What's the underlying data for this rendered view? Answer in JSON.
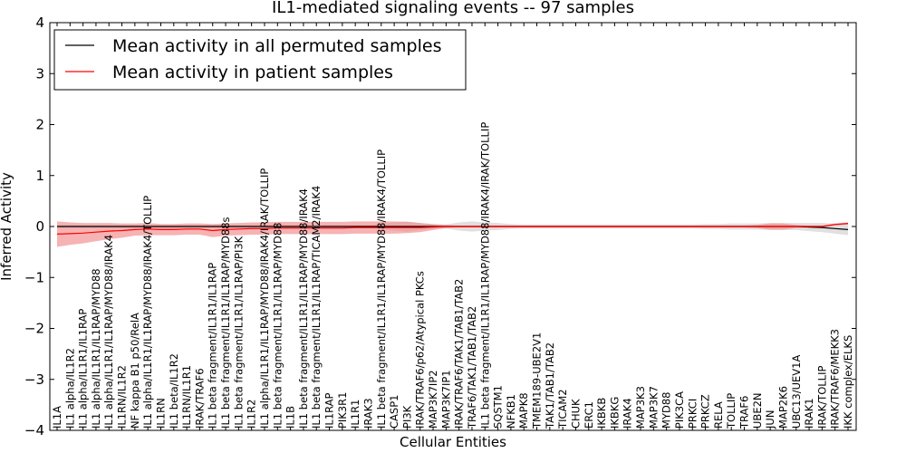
{
  "chart_data": {
    "type": "line",
    "title": "IL1-mediated signaling events -- 97 samples",
    "xlabel": "Cellular Entities",
    "ylabel": "Inferred Activity",
    "ylim": [
      -4,
      4
    ],
    "yticks": [
      4,
      3,
      2,
      1,
      0,
      -1,
      -2,
      -3,
      -4
    ],
    "ytick_labels": [
      "4",
      "3",
      "2",
      "1",
      "0",
      "−1",
      "−2",
      "−3",
      "−4"
    ],
    "legend": {
      "position": "top-left",
      "entries": [
        {
          "name": "Mean activity in all permuted samples",
          "color": "#000000"
        },
        {
          "name": "Mean activity in patient samples",
          "color": "#ff0000"
        }
      ]
    },
    "categories": [
      "IL1A",
      "IL1 alpha/IL1R2",
      "IL1 alpha/IL1R1/IL1RAP",
      "IL1 alpha/IL1R1/IL1RAP/MYD88",
      "IL1 alpha/IL1R1/IL1RAP/MYD88/IRAK4",
      "IL1RN/IL1R2",
      "NF kappa B1 p50/RelA",
      "IL1 alpha/IL1R1/IL1RAP/MYD88/IRAK4/TOLLIP",
      "IL1RN",
      "IL1 beta/IL1R2",
      "IL1RN/IL1R1",
      "IRAK/TRAF6",
      "IL1 beta fragment/IL1R1/IL1RAP",
      "IL1 beta fragment/IL1R1/IL1RAP/MYD88s",
      "IL1 beta fragment/IL1R1/IL1RAP/PI3K",
      "IL1R2",
      "IL1 alpha/IL1R1/IL1RAP/MYD88/IRAK4/IRAK/TOLLIP",
      "IL1 beta fragment/IL1R1/IL1RAP/MYD88",
      "IL1B",
      "IL1 beta fragment/IL1R1/IL1RAP/MYD88/IRAK4",
      "IL1 beta fragment/IL1R1/IL1RAP/TICAM2/IRAK4",
      "IL1RAP",
      "PIK3R1",
      "IL1R1",
      "IRAK3",
      "IL1 beta fragment/IL1R1/IL1RAP/MYD88/IRAK4/TOLLIP",
      "CASP1",
      "PI3K",
      "IRAK/TRAF6/p62/Atypical PKCs",
      "MAP3K7IP2",
      "MAP3K7IP1",
      "IRAK/TRAF6/TAK1/TAB1/TAB2",
      "TRAF6/TAK1/TAB1/TAB2",
      "IL1 beta fragment/IL1R1/IL1RAP/MYD88/IRAK4/IRAK/TOLLIP",
      "SQSTM1",
      "NFKB1",
      "MAPK8",
      "TMEM189-UBE2V1",
      "TAK1/TAB1/TAB2",
      "TICAM2",
      "CHUK",
      "ERC1",
      "IKBKB",
      "IKBKG",
      "IRAK4",
      "MAP3K3",
      "MAP3K7",
      "MYD88",
      "PIK3CA",
      "PRKCI",
      "PRKCZ",
      "RELA",
      "TOLLIP",
      "TRAF6",
      "UBE2N",
      "JUN",
      "MAP2K6",
      "UBC13/UEV1A",
      "IRAK1",
      "IRAK/TOLLIP",
      "IRAK/TRAF6/MEKK3",
      "IKK complex/ELKS"
    ],
    "series": [
      {
        "name": "Mean activity in all permuted samples",
        "color": "#000000",
        "band_color": "#bbbbbb",
        "values": [
          0,
          0,
          0,
          0,
          0,
          0,
          0,
          0,
          0,
          0,
          0,
          0,
          0,
          0,
          0,
          0,
          0,
          0,
          0,
          0,
          0,
          0,
          0,
          0,
          0,
          0,
          0,
          0,
          0,
          0,
          0,
          0,
          0,
          0,
          0,
          0,
          0,
          0,
          0,
          0,
          0,
          0,
          0,
          0,
          0,
          0,
          0,
          0,
          0,
          0,
          0,
          0,
          0,
          0,
          0,
          0,
          0,
          0,
          -0.01,
          -0.02,
          -0.04,
          -0.06
        ],
        "band": [
          0.03,
          0.03,
          0.03,
          0.03,
          0.03,
          0.03,
          0.03,
          0.03,
          0.03,
          0.03,
          0.03,
          0.03,
          0.03,
          0.03,
          0.03,
          0.03,
          0.03,
          0.03,
          0.03,
          0.03,
          0.03,
          0.03,
          0.03,
          0.03,
          0.03,
          0.05,
          0.08,
          0.1,
          0.07,
          0.04,
          0.04,
          0.08,
          0.1,
          0.08,
          0.07,
          0.05,
          0.04,
          0.04,
          0.04,
          0.04,
          0.04,
          0.04,
          0.04,
          0.04,
          0.04,
          0.04,
          0.04,
          0.04,
          0.04,
          0.04,
          0.05,
          0.05,
          0.06,
          0.06,
          0.06,
          0.07,
          0.07,
          0.07,
          0.08,
          0.09,
          0.1,
          0.11
        ]
      },
      {
        "name": "Mean activity in patient samples",
        "color": "#ff0000",
        "band_color": "#f08080",
        "values": [
          -0.15,
          -0.14,
          -0.13,
          -0.11,
          -0.09,
          -0.08,
          -0.06,
          -0.05,
          -0.06,
          -0.06,
          -0.05,
          -0.05,
          -0.08,
          -0.06,
          -0.05,
          -0.04,
          -0.04,
          -0.03,
          -0.03,
          -0.03,
          -0.03,
          -0.03,
          -0.03,
          -0.02,
          -0.02,
          -0.02,
          -0.02,
          -0.02,
          -0.02,
          -0.01,
          0,
          0,
          0,
          0,
          0,
          0,
          0,
          0,
          0,
          0,
          0,
          0,
          0,
          0,
          0,
          0,
          0,
          0,
          0,
          0,
          0,
          0,
          0,
          0,
          0,
          0,
          0,
          0,
          0,
          0,
          0.04,
          0.06
        ],
        "band": [
          0.25,
          0.22,
          0.2,
          0.18,
          0.16,
          0.14,
          0.12,
          0.12,
          0.11,
          0.11,
          0.11,
          0.11,
          0.13,
          0.12,
          0.12,
          0.12,
          0.12,
          0.12,
          0.12,
          0.12,
          0.12,
          0.12,
          0.12,
          0.12,
          0.12,
          0.12,
          0.12,
          0.11,
          0.09,
          0.06,
          0.03,
          0.02,
          0.02,
          0.02,
          0.02,
          0.02,
          0.02,
          0.02,
          0.02,
          0.02,
          0.02,
          0.02,
          0.02,
          0.02,
          0.02,
          0.02,
          0.02,
          0.02,
          0.02,
          0.02,
          0.02,
          0.02,
          0.02,
          0.02,
          0.03,
          0.06,
          0.06,
          0.03,
          0.02,
          0.02,
          0.02,
          0.02
        ]
      }
    ]
  }
}
